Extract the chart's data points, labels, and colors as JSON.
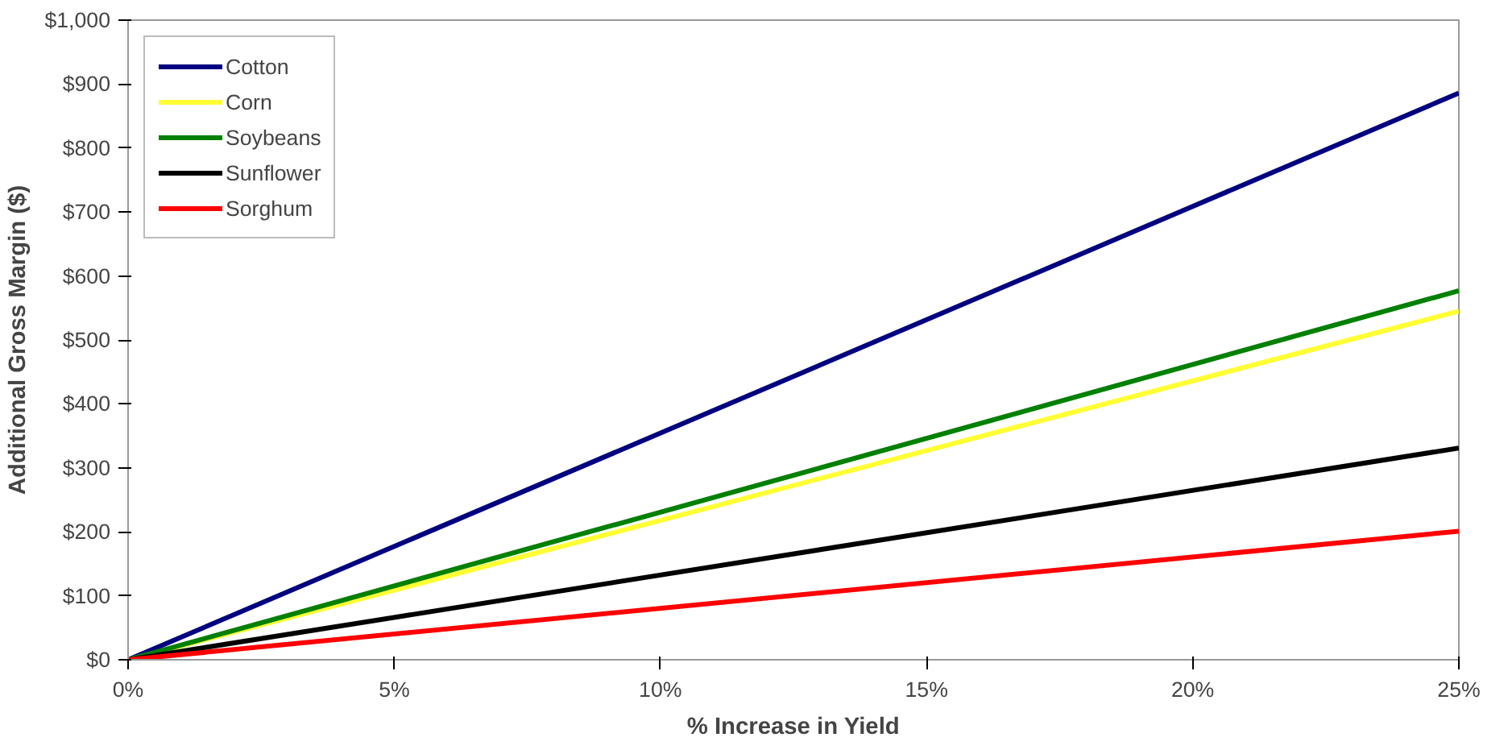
{
  "chart_data": {
    "type": "line",
    "xlabel": "% Increase in Yield",
    "ylabel": "Additional Gross Margin ($)",
    "x": [
      0,
      25
    ],
    "series": [
      {
        "name": "Cotton",
        "color": "#000080",
        "values": [
          0,
          886
        ]
      },
      {
        "name": "Corn",
        "color": "#ffff33",
        "values": [
          0,
          545
        ]
      },
      {
        "name": "Soybeans",
        "color": "#008000",
        "values": [
          0,
          577
        ]
      },
      {
        "name": "Sunflower",
        "color": "#000000",
        "values": [
          0,
          331
        ]
      },
      {
        "name": "Sorghum",
        "color": "#ff0000",
        "values": [
          0,
          201
        ]
      }
    ],
    "xlim": [
      0,
      25
    ],
    "ylim": [
      0,
      1000
    ],
    "xticks": [
      {
        "value": 0,
        "label": "0%"
      },
      {
        "value": 5,
        "label": "5%"
      },
      {
        "value": 10,
        "label": "10%"
      },
      {
        "value": 15,
        "label": "15%"
      },
      {
        "value": 20,
        "label": "20%"
      },
      {
        "value": 25,
        "label": "25%"
      }
    ],
    "yticks": [
      {
        "value": 0,
        "label": "$0"
      },
      {
        "value": 100,
        "label": "$100"
      },
      {
        "value": 200,
        "label": "$200"
      },
      {
        "value": 300,
        "label": "$300"
      },
      {
        "value": 400,
        "label": "$400"
      },
      {
        "value": 500,
        "label": "$500"
      },
      {
        "value": 600,
        "label": "$600"
      },
      {
        "value": 700,
        "label": "$700"
      },
      {
        "value": 800,
        "label": "$800"
      },
      {
        "value": 900,
        "label": "$900"
      },
      {
        "value": 1000,
        "label": "$1,000"
      }
    ],
    "grid": false,
    "legend": "top left",
    "marker": "none",
    "line_style": "solid"
  }
}
